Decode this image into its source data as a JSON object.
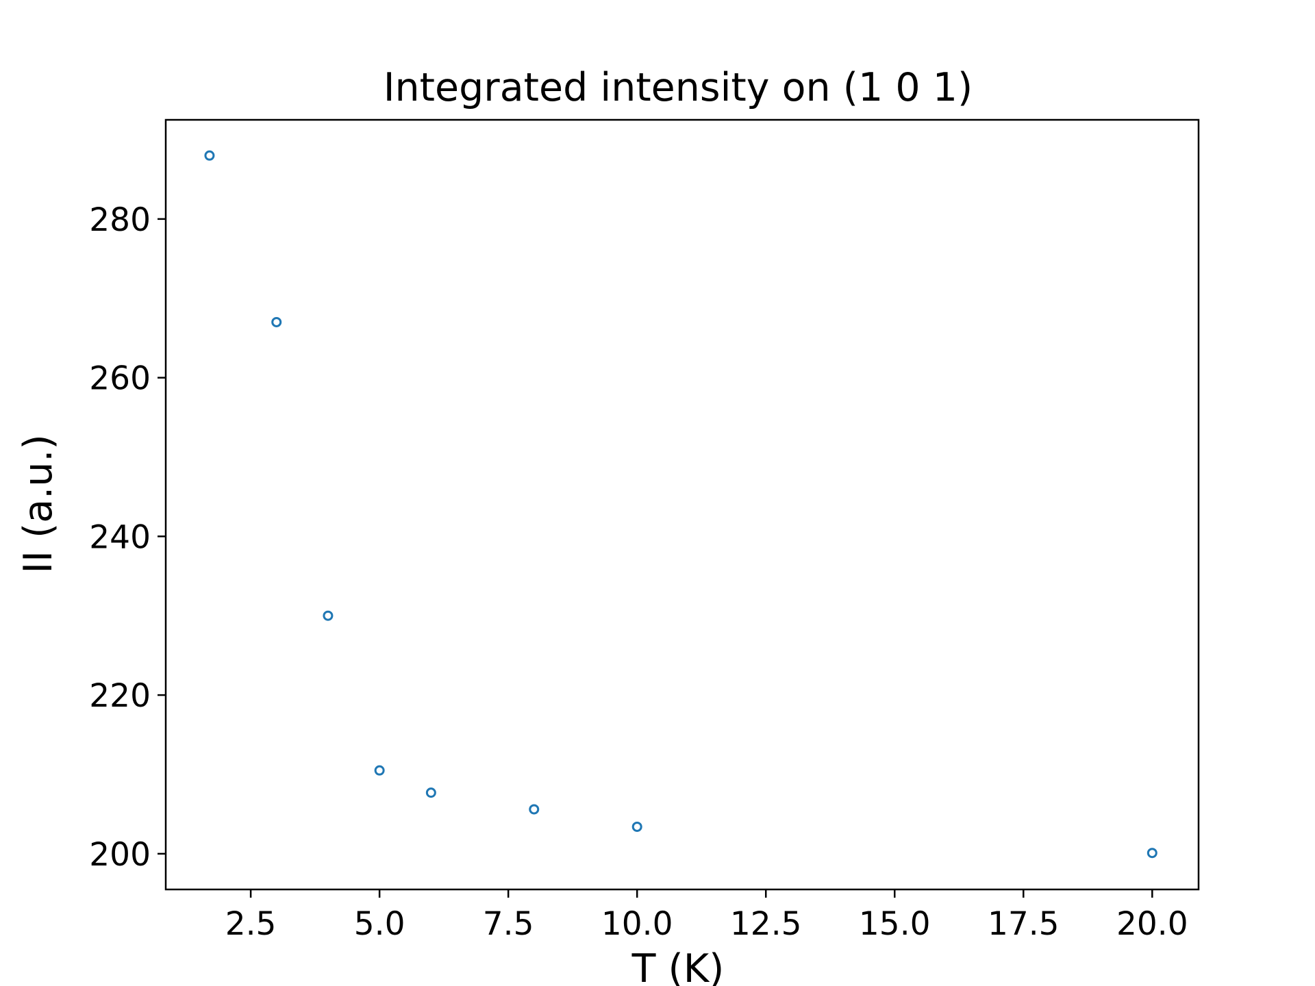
{
  "chart_data": {
    "type": "scatter",
    "title": "Integrated intensity on (1 0 1)",
    "xlabel": "T (K)",
    "ylabel": "II (a.u.)",
    "xlim": [
      0.85,
      20.9
    ],
    "ylim": [
      195.5,
      292.5
    ],
    "xticks": [
      2.5,
      5.0,
      7.5,
      10.0,
      12.5,
      15.0,
      17.5,
      20.0
    ],
    "xtick_labels": [
      "2.5",
      "5.0",
      "7.5",
      "10.0",
      "12.5",
      "15.0",
      "17.5",
      "20.0"
    ],
    "yticks": [
      200,
      220,
      240,
      260,
      280
    ],
    "ytick_labels": [
      "200",
      "220",
      "240",
      "260",
      "280"
    ],
    "grid": false,
    "legend": "none",
    "marker": "hollow-circle",
    "series": [
      {
        "color": "#1f77b4",
        "points": [
          {
            "x": 1.7,
            "y": 288.0
          },
          {
            "x": 3.0,
            "y": 267.0
          },
          {
            "x": 4.0,
            "y": 230.0
          },
          {
            "x": 5.0,
            "y": 210.5
          },
          {
            "x": 6.0,
            "y": 207.7
          },
          {
            "x": 8.0,
            "y": 205.6
          },
          {
            "x": 10.0,
            "y": 203.4
          },
          {
            "x": 20.0,
            "y": 200.1
          }
        ]
      }
    ]
  }
}
